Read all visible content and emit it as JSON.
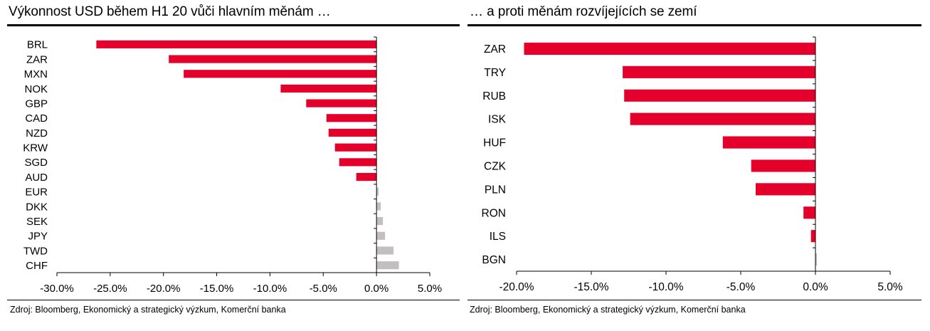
{
  "colors": {
    "negative": "#E4002B",
    "positive": "#C4BFBF",
    "axis": "#000000"
  },
  "charts": [
    {
      "title": "Výkonnost USD během H1 20 vůči hlavním měnám …",
      "source": "Zdroj: Bloomberg, Ekonomický a strategický výzkum, Komerční banka"
    },
    {
      "title": "… a proti měnám rozvíjejících se zemí",
      "source": "Zdroj: Bloomberg, Ekonomický a strategický výzkum, Komerční banka"
    }
  ],
  "chart_data": [
    {
      "type": "bar",
      "orientation": "horizontal",
      "title": "Výkonnost USD během H1 20 vůči hlavním měnám …",
      "categories": [
        "BRL",
        "ZAR",
        "MXN",
        "NOK",
        "GBP",
        "CAD",
        "NZD",
        "KRW",
        "SGD",
        "AUD",
        "EUR",
        "DKK",
        "SEK",
        "JPY",
        "TWD",
        "CHF"
      ],
      "values": [
        -26.3,
        -19.5,
        -18.1,
        -9.0,
        -6.6,
        -4.7,
        -4.5,
        -3.9,
        -3.5,
        -1.9,
        0.2,
        0.4,
        0.6,
        0.8,
        1.6,
        2.1
      ],
      "xlim": [
        -30,
        5
      ],
      "xticks": [
        "-30.0%",
        "-25.0%",
        "-20.0%",
        "-15.0%",
        "-10.0%",
        "-5.0%",
        "0.0%",
        "5.0%"
      ],
      "xtick_values": [
        -30,
        -25,
        -20,
        -15,
        -10,
        -5,
        0,
        5
      ],
      "xlabel": "",
      "ylabel": "",
      "grid": false,
      "legend": "none"
    },
    {
      "type": "bar",
      "orientation": "horizontal",
      "title": "… a proti měnám rozvíjejících se zemí",
      "categories": [
        "ZAR",
        "TRY",
        "RUB",
        "ISK",
        "HUF",
        "CZK",
        "PLN",
        "RON",
        "ILS",
        "BGN"
      ],
      "values": [
        -19.5,
        -12.9,
        -12.8,
        -12.4,
        -6.2,
        -4.3,
        -4.0,
        -0.8,
        -0.3,
        0.1
      ],
      "xlim": [
        -20,
        5
      ],
      "xticks": [
        "-20.0%",
        "-15.0%",
        "-10.0%",
        "-5.0%",
        "0.0%",
        "5.0%"
      ],
      "xtick_values": [
        -20,
        -15,
        -10,
        -5,
        0,
        5
      ],
      "xlabel": "",
      "ylabel": "",
      "grid": false,
      "legend": "none"
    }
  ]
}
